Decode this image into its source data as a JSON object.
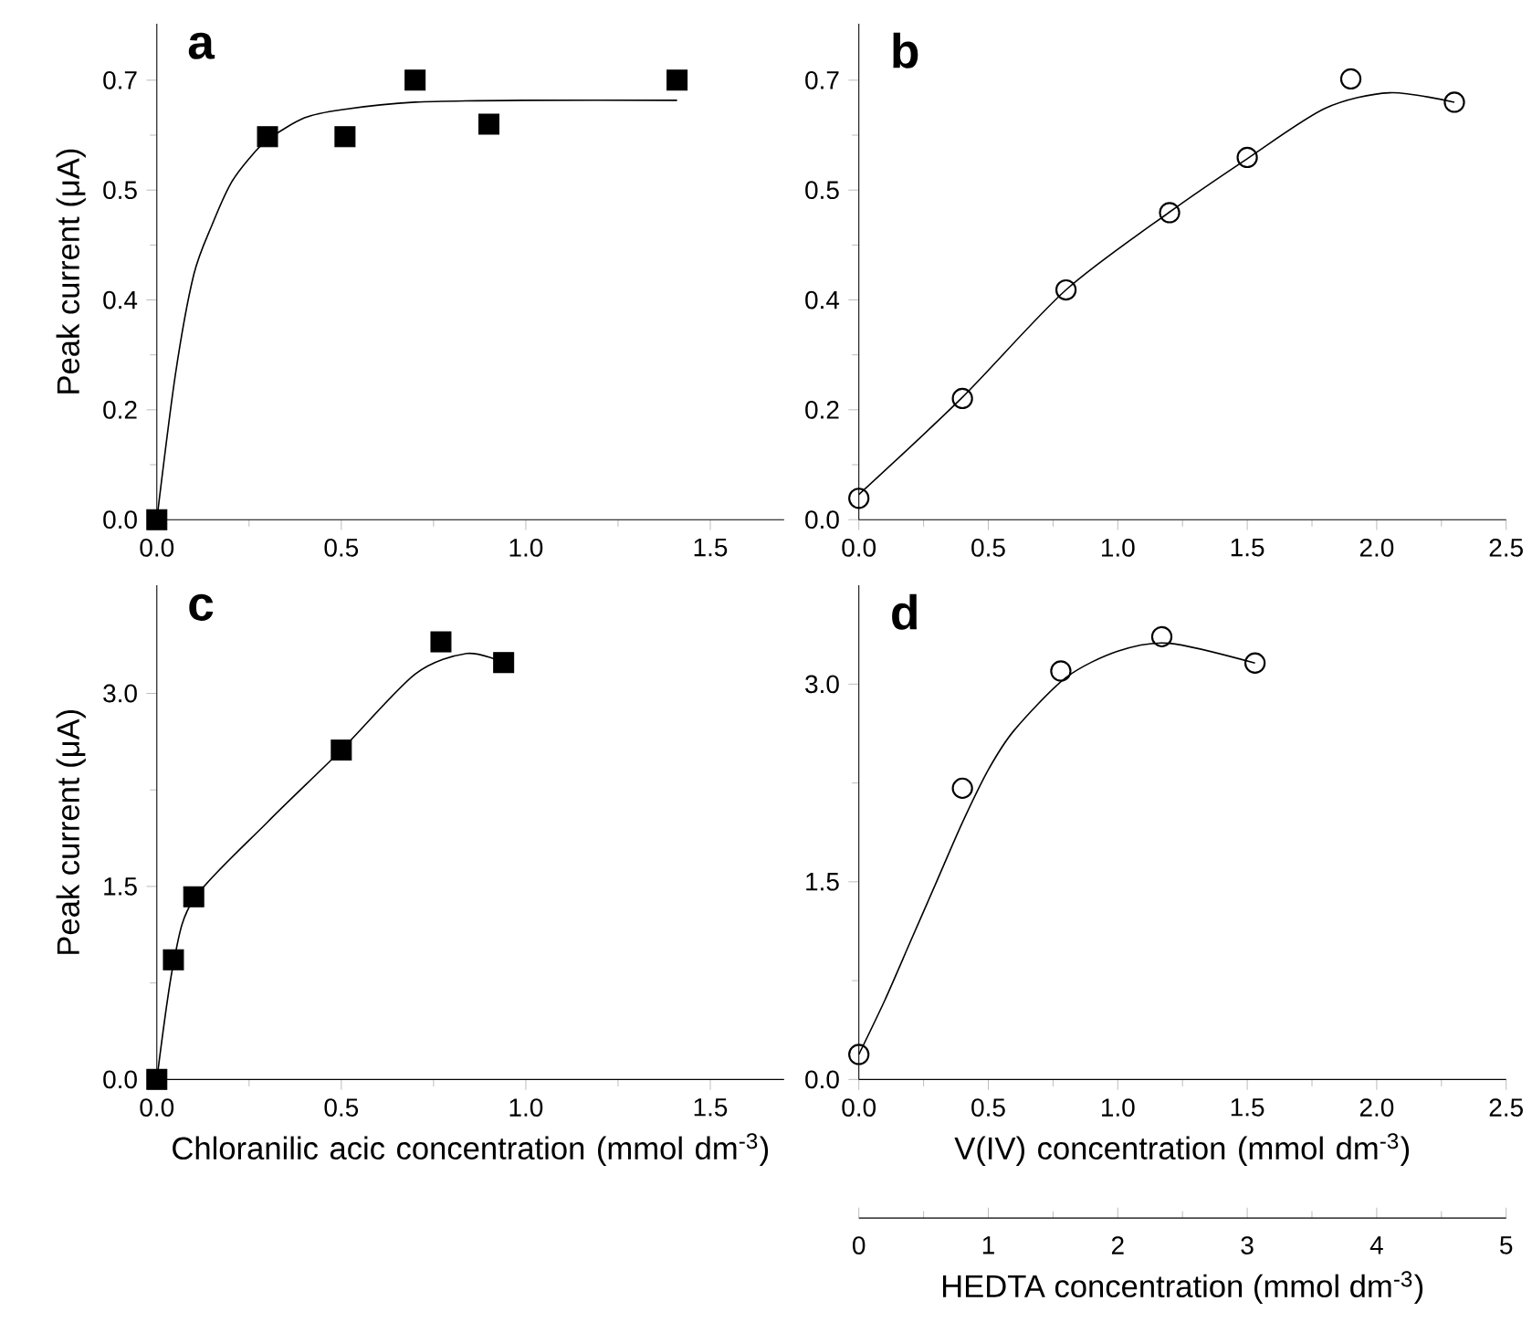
{
  "chart_data": [
    {
      "type": "scatter",
      "title": "a",
      "ylabel": "Peak current (μA)",
      "xlim": [
        0,
        1.7
      ],
      "ylim": [
        0,
        0.79
      ],
      "xticks": [
        {
          "value": 0,
          "label": "0.0"
        },
        0.5,
        {
          "value": 1.0,
          "label": "1.0"
        },
        1.5
      ],
      "yticks": [
        {
          "value": 0,
          "label": "0.0"
        },
        {
          "value": 0.175,
          "label": "0.2"
        },
        {
          "value": 0.35,
          "label": "0.4"
        },
        {
          "value": 0.525,
          "label": "0.5"
        },
        {
          "value": 0.7,
          "label": "0.7"
        }
      ],
      "series": [
        {
          "marker": "square",
          "color": "#000000",
          "x": [
            0,
            0.3,
            0.51,
            0.7,
            0.9,
            1.41
          ],
          "values": [
            0,
            0.61,
            0.61,
            0.7,
            0.63,
            0.7
          ]
        },
        {
          "type": "line",
          "marker": "none",
          "color": "#000000",
          "x": [
            0,
            0.05,
            0.1,
            0.15,
            0.2,
            0.25,
            0.3,
            0.4,
            0.5,
            0.7,
            1.0,
            1.41
          ],
          "values": [
            0,
            0.23,
            0.39,
            0.47,
            0.535,
            0.575,
            0.605,
            0.64,
            0.653,
            0.665,
            0.668,
            0.668
          ]
        }
      ]
    },
    {
      "type": "scatter",
      "title": "b",
      "xlim": [
        0,
        2.5
      ],
      "ylim": [
        0,
        0.79
      ],
      "xticks": [
        {
          "value": 0,
          "label": "0.0"
        },
        0.5,
        {
          "value": 1.0,
          "label": "1.0"
        },
        1.5,
        {
          "value": 2.0,
          "label": "2.0"
        },
        2.5
      ],
      "yticks": [
        {
          "value": 0,
          "label": "0.0"
        },
        {
          "value": 0.175,
          "label": "0.2"
        },
        {
          "value": 0.35,
          "label": "0.4"
        },
        {
          "value": 0.525,
          "label": "0.5"
        },
        {
          "value": 0.7,
          "label": "0.7"
        }
      ],
      "series": [
        {
          "marker": "circle",
          "color": "#000000",
          "x": [
            0,
            0.4,
            0.8,
            1.2,
            1.5,
            1.9,
            2.3
          ],
          "values": [
            0.034,
            0.193,
            0.366,
            0.489,
            0.577,
            0.702,
            0.665
          ]
        },
        {
          "type": "line",
          "marker": "none",
          "color": "#000000",
          "x": [
            0,
            0.4,
            0.8,
            1.2,
            1.5,
            1.8,
            2.05,
            2.3
          ],
          "values": [
            0.04,
            0.195,
            0.366,
            0.49,
            0.575,
            0.655,
            0.68,
            0.665
          ]
        }
      ]
    },
    {
      "type": "scatter",
      "title": "c",
      "ylabel": "Peak current (μA)",
      "xlabel": "Chloranilic acic concentration (mmol dm$^{-3}$)",
      "xlim": [
        0,
        1.7
      ],
      "ylim": [
        0,
        3.84
      ],
      "xticks": [
        {
          "value": 0,
          "label": "0.0"
        },
        0.5,
        {
          "value": 1.0,
          "label": "1.0"
        },
        1.5
      ],
      "yticks": [
        {
          "value": 0,
          "label": "0.0"
        },
        1.5,
        {
          "value": 3.0,
          "label": "3.0"
        }
      ],
      "series": [
        {
          "marker": "square",
          "color": "#000000",
          "x": [
            0,
            0.045,
            0.1,
            0.5,
            0.77,
            0.94
          ],
          "values": [
            0,
            0.93,
            1.42,
            2.56,
            3.4,
            3.24
          ]
        },
        {
          "type": "line",
          "marker": "none",
          "color": "#000000",
          "x": [
            0,
            0.045,
            0.1,
            0.3,
            0.5,
            0.7,
            0.84,
            0.94
          ],
          "values": [
            0,
            0.9,
            1.4,
            2.0,
            2.56,
            3.15,
            3.31,
            3.24
          ]
        }
      ]
    },
    {
      "type": "scatter",
      "title": "d",
      "xlabel": "V(IV) concentration (mmol dm$^{-3}$)",
      "xlim": [
        0,
        2.5
      ],
      "ylim": [
        0,
        3.75
      ],
      "xticks": [
        {
          "value": 0,
          "label": "0.0"
        },
        0.5,
        {
          "value": 1.0,
          "label": "1.0"
        },
        1.5,
        {
          "value": 2.0,
          "label": "2.0"
        },
        2.5
      ],
      "yticks": [
        {
          "value": 0,
          "label": "0.0"
        },
        1.5,
        {
          "value": 3.0,
          "label": "3.0"
        }
      ],
      "x2lim": [
        0,
        5
      ],
      "x2ticks": [
        0,
        1,
        2,
        3,
        4,
        5
      ],
      "x2label": "HEDTA concentration (mmol dm$^{-3}$)",
      "series": [
        {
          "marker": "circle",
          "color": "#000000",
          "x": [
            0,
            0.4,
            0.78,
            1.17,
            1.53
          ],
          "values": [
            0.19,
            2.21,
            3.1,
            3.36,
            3.16
          ]
        },
        {
          "type": "line",
          "marker": "none",
          "color": "#000000",
          "x": [
            0,
            0.1,
            0.2,
            0.3,
            0.4,
            0.5,
            0.6,
            0.8,
            1.0,
            1.2,
            1.53
          ],
          "values": [
            0.19,
            0.6,
            1.05,
            1.5,
            1.95,
            2.35,
            2.65,
            3.05,
            3.25,
            3.31,
            3.16
          ]
        }
      ]
    }
  ]
}
